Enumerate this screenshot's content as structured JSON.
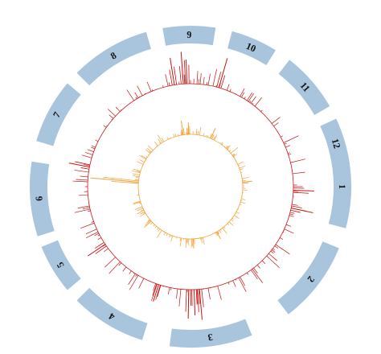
{
  "chart_data": {
    "type": "circos",
    "title": "",
    "chromosomes": [
      {
        "label": "1",
        "start": -15,
        "end": 15
      },
      {
        "label": "2",
        "start": 22.5,
        "end": 52.5
      },
      {
        "label": "3",
        "start": 67.5,
        "end": 97.5
      },
      {
        "label": "4",
        "start": 107.5,
        "end": 135
      },
      {
        "label": "5",
        "start": 140,
        "end": 158
      },
      {
        "label": "6",
        "start": 162,
        "end": 189
      },
      {
        "label": "7",
        "start": 196.5,
        "end": 220
      },
      {
        "label": "8",
        "start": 225,
        "end": 254
      },
      {
        "label": "9",
        "start": 260,
        "end": 279
      },
      {
        "label": "10",
        "start": 285,
        "end": 302
      },
      {
        "label": "11",
        "start": 308,
        "end": 330
      },
      {
        "label": "12",
        "start": 335,
        "end": 352
      }
    ],
    "tracks": [
      {
        "color": "#cc1111",
        "base_radius": 128,
        "max_length": 40,
        "peaks": [
          [
            85,
            38
          ],
          [
            88,
            32
          ],
          [
            91,
            36
          ],
          [
            261,
            34
          ],
          [
            266,
            40
          ],
          [
            268,
            30
          ],
          [
            286,
            38
          ],
          [
            191,
            26
          ],
          [
            146,
            26
          ],
          [
            108,
            22
          ],
          [
            2,
            26
          ],
          [
            12,
            28
          ]
        ]
      },
      {
        "color": "#f2a23a",
        "base_radius": 65,
        "max_length": 22,
        "peaks": [
          [
            185,
            60
          ],
          [
            262,
            18
          ],
          [
            268,
            15
          ],
          [
            293,
            14
          ],
          [
            355,
            12
          ],
          [
            87,
            12
          ],
          [
            60,
            10
          ]
        ]
      }
    ]
  },
  "colors": {
    "chromosome_fill": "#a9c4dd",
    "background": "#ffffff"
  }
}
